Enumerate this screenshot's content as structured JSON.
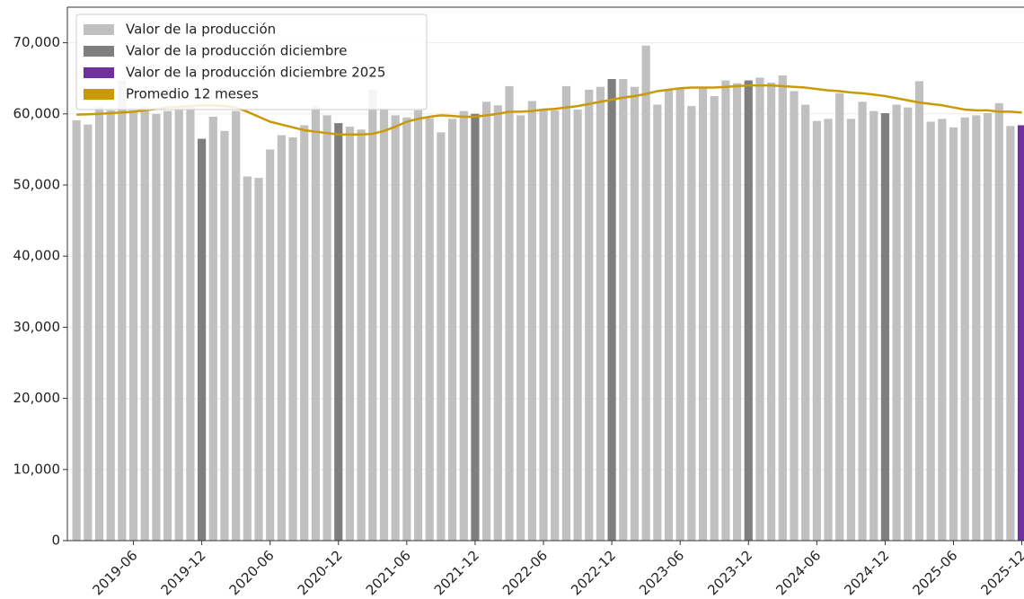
{
  "chart_data": {
    "type": "bar",
    "categories": [
      null,
      null,
      null,
      null,
      null,
      "2019-06",
      null,
      null,
      null,
      null,
      null,
      "2019-12",
      null,
      null,
      null,
      null,
      null,
      "2020-06",
      null,
      null,
      null,
      null,
      null,
      "2020-12",
      null,
      null,
      null,
      null,
      null,
      "2021-06",
      null,
      null,
      null,
      null,
      null,
      "2021-12",
      null,
      null,
      null,
      null,
      null,
      "2022-06",
      null,
      null,
      null,
      null,
      null,
      "2022-12",
      null,
      null,
      null,
      null,
      null,
      "2023-06",
      null,
      null,
      null,
      null,
      null,
      "2023-12",
      null,
      null,
      null,
      null,
      null,
      "2024-06",
      null,
      null,
      null,
      null,
      null,
      "2024-12",
      null,
      null,
      null,
      null,
      null,
      "2025-06",
      null,
      null,
      null,
      null,
      null,
      "2025-12"
    ],
    "series": [
      {
        "name": "Valor de la producción",
        "color": "#c0c0c0",
        "values": [
          59100,
          58500,
          61000,
          60500,
          64700,
          60500,
          61000,
          60000,
          60400,
          60800,
          61000,
          null,
          59600,
          57600,
          60400,
          51200,
          51000,
          55000,
          57000,
          56700,
          58400,
          61100,
          59800,
          null,
          58200,
          57800,
          63400,
          60800,
          59800,
          59500,
          60500,
          59400,
          57400,
          59300,
          60400,
          null,
          61700,
          61200,
          63900,
          59800,
          61800,
          60500,
          60500,
          63900,
          60600,
          63400,
          63800,
          null,
          64900,
          63800,
          69600,
          61300,
          63400,
          63500,
          61100,
          63800,
          62500,
          64700,
          64300,
          null,
          65100,
          64400,
          65400,
          63200,
          61300,
          59000,
          59300,
          62900,
          59300,
          61700,
          60400,
          null,
          61300,
          60900,
          64600,
          58900,
          59300,
          58100,
          59500,
          59800,
          60100,
          61500,
          58300,
          null
        ]
      },
      {
        "name": "Valor de la producción diciembre",
        "color": "#7f7f7f",
        "values": [
          null,
          null,
          null,
          null,
          null,
          null,
          null,
          null,
          null,
          null,
          null,
          56500,
          null,
          null,
          null,
          null,
          null,
          null,
          null,
          null,
          null,
          null,
          null,
          58700,
          null,
          null,
          null,
          null,
          null,
          null,
          null,
          null,
          null,
          null,
          null,
          60000,
          null,
          null,
          null,
          null,
          null,
          null,
          null,
          null,
          null,
          null,
          null,
          64900,
          null,
          null,
          null,
          null,
          null,
          null,
          null,
          null,
          null,
          null,
          null,
          64700,
          null,
          null,
          null,
          null,
          null,
          null,
          null,
          null,
          null,
          null,
          null,
          60100,
          null,
          null,
          null,
          null,
          null,
          null,
          null,
          null,
          null,
          null,
          null,
          null
        ]
      },
      {
        "name": "Valor de la producción diciembre 2025",
        "color": "#7030a0",
        "values": [
          null,
          null,
          null,
          null,
          null,
          null,
          null,
          null,
          null,
          null,
          null,
          null,
          null,
          null,
          null,
          null,
          null,
          null,
          null,
          null,
          null,
          null,
          null,
          null,
          null,
          null,
          null,
          null,
          null,
          null,
          null,
          null,
          null,
          null,
          null,
          null,
          null,
          null,
          null,
          null,
          null,
          null,
          null,
          null,
          null,
          null,
          null,
          null,
          null,
          null,
          null,
          null,
          null,
          null,
          null,
          null,
          null,
          null,
          null,
          null,
          null,
          null,
          null,
          null,
          null,
          null,
          null,
          null,
          null,
          null,
          null,
          null,
          null,
          null,
          null,
          null,
          null,
          null,
          null,
          null,
          null,
          null,
          null,
          58400
        ]
      },
      {
        "name": "Promedio 12 meses",
        "color": "#c99a06",
        "type": "line",
        "values": [
          59900,
          59950,
          60000,
          60100,
          60200,
          60300,
          60500,
          60700,
          60900,
          61000,
          61100,
          61200,
          61200,
          61100,
          60900,
          60300,
          59600,
          58900,
          58500,
          58100,
          57700,
          57500,
          57300,
          57100,
          57100,
          57100,
          57200,
          57600,
          58200,
          58900,
          59300,
          59600,
          59800,
          59700,
          59600,
          59600,
          59800,
          60000,
          60300,
          60300,
          60400,
          60600,
          60700,
          60900,
          61100,
          61400,
          61700,
          62000,
          62300,
          62500,
          62800,
          63200,
          63400,
          63600,
          63700,
          63700,
          63700,
          63800,
          63900,
          64000,
          64000,
          64000,
          63900,
          63800,
          63700,
          63500,
          63300,
          63200,
          63000,
          62900,
          62700,
          62500,
          62200,
          61900,
          61600,
          61400,
          61200,
          60900,
          60600,
          60500,
          60500,
          60300,
          60300,
          60200
        ]
      }
    ],
    "ylim": [
      0,
      75000
    ],
    "yticks": [
      0,
      {
        "value": 10000,
        "label": "10,000"
      },
      {
        "value": 20000,
        "label": "20,000"
      },
      {
        "value": 30000,
        "label": "30,000"
      },
      {
        "value": 40000,
        "label": "40,000"
      },
      {
        "value": 50000,
        "label": "50,000"
      },
      {
        "value": 60000,
        "label": "60,000"
      },
      {
        "value": 70000,
        "label": "70,000"
      }
    ],
    "grid": true,
    "legend": "upper left"
  }
}
